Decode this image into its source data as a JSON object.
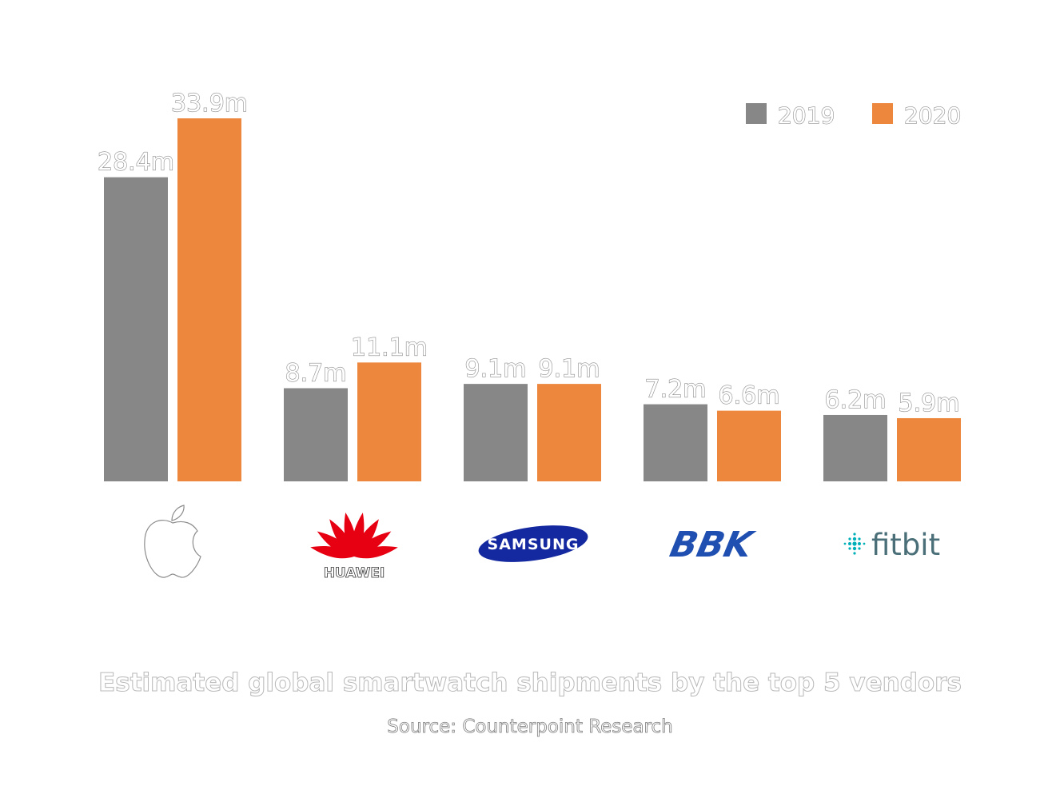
{
  "chart_data": {
    "type": "bar",
    "title": "Estimated global smartwatch shipments by the top 5 vendors",
    "source": "Source: Counterpoint Research",
    "categories": [
      "Apple",
      "HUAWEI",
      "SAMSUNG",
      "BBK",
      "fitbit"
    ],
    "series": [
      {
        "name": "2019",
        "values": [
          28.4,
          8.7,
          9.1,
          7.2,
          6.2
        ],
        "labels": [
          "28.4m",
          "8.7m",
          "9.1m",
          "7.2m",
          "6.2m"
        ],
        "color": "#878787"
      },
      {
        "name": "2020",
        "values": [
          33.9,
          11.1,
          9.1,
          6.6,
          5.9
        ],
        "labels": [
          "33.9m",
          "11.1m",
          "9.1m",
          "6.6m",
          "5.9m"
        ],
        "color": "#ed873d"
      }
    ],
    "ylim": [
      0,
      33.9
    ],
    "grid": false,
    "legend_position": "top-right",
    "category_icons": [
      "apple-logo",
      "huawei-logo",
      "samsung-logo",
      "bbk-logo",
      "fitbit-logo"
    ]
  },
  "logos": {
    "huawei_text": "HUAWEI",
    "samsung_text": "SAMSUNG",
    "bbk_text": "BBK",
    "fitbit_text": "fitbit",
    "huawei_color": "#e60012",
    "samsung_color": "#1428a0",
    "bbk_color": "#1f4fb0",
    "fitbit_color": "#4a6f78"
  }
}
